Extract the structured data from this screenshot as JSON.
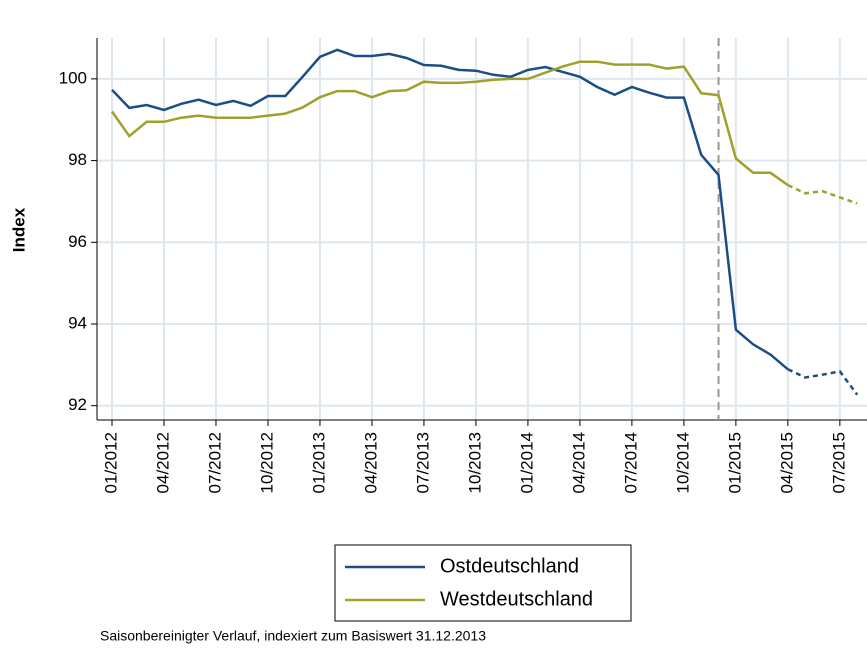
{
  "chart_data": {
    "type": "line",
    "y_label": "Index",
    "note": "Saisonbereinigter Verlauf, indexiert zum Basiswert 31.12.2013",
    "x": [
      "01/2012",
      "02/2012",
      "03/2012",
      "04/2012",
      "05/2012",
      "06/2012",
      "07/2012",
      "08/2012",
      "09/2012",
      "10/2012",
      "11/2012",
      "12/2012",
      "01/2013",
      "02/2013",
      "03/2013",
      "04/2013",
      "05/2013",
      "06/2013",
      "07/2013",
      "08/2013",
      "09/2013",
      "10/2013",
      "11/2013",
      "12/2013",
      "01/2014",
      "02/2014",
      "03/2014",
      "04/2014",
      "05/2014",
      "06/2014",
      "07/2014",
      "08/2014",
      "09/2014",
      "10/2014",
      "11/2014",
      "12/2014",
      "01/2015",
      "02/2015",
      "03/2015",
      "04/2015",
      "05/2015",
      "06/2015",
      "07/2015",
      "08/2015"
    ],
    "xticks": [
      "01/2012",
      "04/2012",
      "07/2012",
      "10/2012",
      "01/2013",
      "04/2013",
      "07/2013",
      "10/2013",
      "01/2014",
      "04/2014",
      "07/2014",
      "10/2014",
      "01/2015",
      "04/2015",
      "07/2015"
    ],
    "vline": "12/2014",
    "dashed_from": "04/2015",
    "ylim": [
      91.65,
      101
    ],
    "yticks": [
      92,
      94,
      96,
      98,
      100
    ],
    "grid": true,
    "series": [
      {
        "name": "Ostdeutschland",
        "color": "#1b4d86",
        "values": [
          99.73,
          99.29,
          99.36,
          99.24,
          99.39,
          99.49,
          99.36,
          99.46,
          99.34,
          99.58,
          99.58,
          100.05,
          100.54,
          100.71,
          100.56,
          100.56,
          100.61,
          100.51,
          100.34,
          100.32,
          100.22,
          100.2,
          100.1,
          100.05,
          100.22,
          100.29,
          100.17,
          100.05,
          99.8,
          99.61,
          99.8,
          99.66,
          99.54,
          99.54,
          98.14,
          97.65,
          93.86,
          93.5,
          93.25,
          92.89,
          92.69,
          92.76,
          92.84,
          92.27
        ]
      },
      {
        "name": "Westdeutschland",
        "color": "#a0a02c",
        "values": [
          99.2,
          98.6,
          98.95,
          98.95,
          99.05,
          99.1,
          99.05,
          99.05,
          99.05,
          99.1,
          99.15,
          99.3,
          99.55,
          99.7,
          99.7,
          99.55,
          99.7,
          99.72,
          99.93,
          99.9,
          99.9,
          99.93,
          99.98,
          100.0,
          100.0,
          100.15,
          100.3,
          100.42,
          100.42,
          100.35,
          100.35,
          100.35,
          100.25,
          100.3,
          99.65,
          99.6,
          98.05,
          97.7,
          97.7,
          97.4,
          97.2,
          97.25,
          97.1,
          96.95
        ]
      }
    ]
  }
}
